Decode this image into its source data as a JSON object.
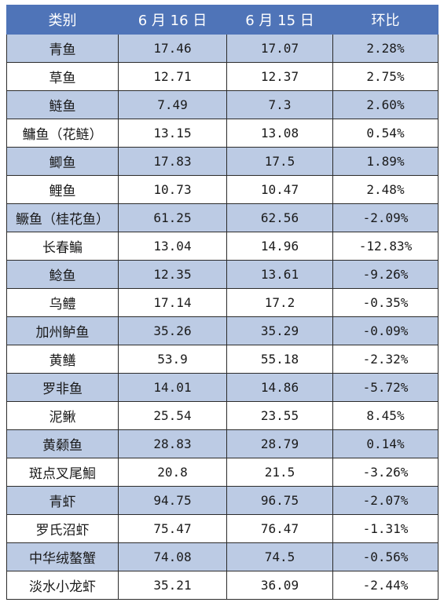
{
  "table": {
    "headers": [
      "类别",
      "6 月 16 日",
      "6 月 15 日",
      "环比"
    ],
    "rows": [
      [
        "青鱼",
        "17.46",
        "17.07",
        "2.28%"
      ],
      [
        "草鱼",
        "12.71",
        "12.37",
        "2.75%"
      ],
      [
        "鲢鱼",
        "7.49",
        "7.3",
        "2.60%"
      ],
      [
        "鳙鱼（花鲢）",
        "13.15",
        "13.08",
        "0.54%"
      ],
      [
        "鲫鱼",
        "17.83",
        "17.5",
        "1.89%"
      ],
      [
        "鲤鱼",
        "10.73",
        "10.47",
        "2.48%"
      ],
      [
        "鳜鱼（桂花鱼）",
        "61.25",
        "62.56",
        "-2.09%"
      ],
      [
        "长春鳊",
        "13.04",
        "14.96",
        "-12.83%"
      ],
      [
        "鲶鱼",
        "12.35",
        "13.61",
        "-9.26%"
      ],
      [
        "乌鳢",
        "17.14",
        "17.2",
        "-0.35%"
      ],
      [
        "加州鲈鱼",
        "35.26",
        "35.29",
        "-0.09%"
      ],
      [
        "黄鳝",
        "53.9",
        "55.18",
        "-2.32%"
      ],
      [
        "罗非鱼",
        "14.01",
        "14.86",
        "-5.72%"
      ],
      [
        "泥鳅",
        "25.54",
        "23.55",
        "8.45%"
      ],
      [
        "黄颡鱼",
        "28.83",
        "28.79",
        "0.14%"
      ],
      [
        "斑点叉尾鮰",
        "20.8",
        "21.5",
        "-3.26%"
      ],
      [
        "青虾",
        "94.75",
        "96.75",
        "-2.07%"
      ],
      [
        "罗氏沼虾",
        "75.47",
        "76.47",
        "-1.31%"
      ],
      [
        "中华绒螯蟹",
        "74.08",
        "74.5",
        "-0.56%"
      ],
      [
        "淡水小龙虾",
        "35.21",
        "36.09",
        "-2.44%"
      ]
    ]
  },
  "colors": {
    "header_bg": "#4f74b8",
    "header_text": "#ffffff",
    "stripe_bg": "#bccbe4",
    "plain_bg": "#ffffff",
    "border": "#2b2b2b"
  }
}
